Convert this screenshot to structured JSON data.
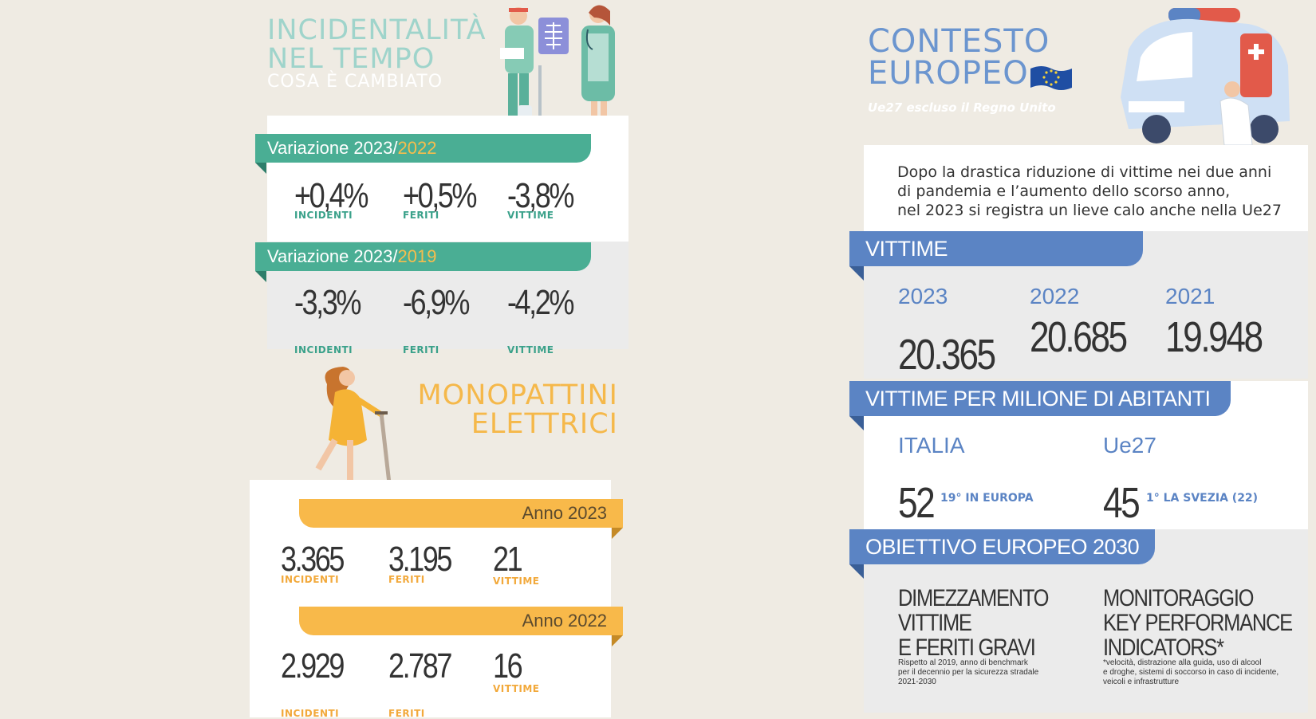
{
  "left": {
    "title_line1": "INCIDENTALITÀ",
    "title_line2": "NEL TEMPO",
    "subtitle": "COSA È CAMBIATO",
    "variation1": {
      "prefix": "Variazione 2023/",
      "year": "2022",
      "values": [
        {
          "value": "+0,4%",
          "label": "INCIDENTI"
        },
        {
          "value": "+0,5%",
          "label": "FERITI"
        },
        {
          "value": "-3,8%",
          "label": "VITTIME"
        }
      ]
    },
    "variation2": {
      "prefix": "Variazione 2023/",
      "year": "2019",
      "values": [
        {
          "value": "-3,3%",
          "label": "INCIDENTI"
        },
        {
          "value": "-6,9%",
          "label": "FERITI"
        },
        {
          "value": "-4,2%",
          "label": "VITTIME"
        }
      ]
    }
  },
  "scooter": {
    "title_line1": "MONOPATTINI",
    "title_line2": "ELETTRICI",
    "year1": {
      "label": "Anno 2023",
      "values": [
        {
          "value": "3.365",
          "label": "INCIDENTI"
        },
        {
          "value": "3.195",
          "label": "FERITI"
        },
        {
          "value": "21",
          "label": "VITTIME"
        }
      ]
    },
    "year2": {
      "label": "Anno 2022",
      "values": [
        {
          "value": "2.929",
          "label": "INCIDENTI"
        },
        {
          "value": "2.787",
          "label": "FERITI"
        },
        {
          "value": "16",
          "label": "VITTIME"
        }
      ]
    }
  },
  "europe": {
    "title_line1": "CONTESTO",
    "title_line2": "EUROPEO",
    "note": "Ue27 escluso il Regno Unito",
    "intro_line1": "Dopo la drastica riduzione di vittime nei due anni",
    "intro_line2": "di pandemia e l’aumento dello scorso anno,",
    "intro_line3": "nel 2023 si registra un lieve calo anche nella Ue27",
    "victims": {
      "header": "VITTIME",
      "years": [
        {
          "year": "2023",
          "value": "20.365"
        },
        {
          "year": "2022",
          "value": "20.685"
        },
        {
          "year": "2021",
          "value": "19.948"
        }
      ]
    },
    "per_million": {
      "header": "VITTIME PER MILIONE DI ABITANTI",
      "italy": {
        "label": "ITALIA",
        "value": "52",
        "note": "19° IN EUROPA"
      },
      "eu": {
        "label": "Ue27",
        "value": "45",
        "note": "1° LA SVEZIA (22)"
      }
    },
    "objective": {
      "header": "OBIETTIVO EUROPEO 2030",
      "col1": {
        "line1": "DIMEZZAMENTO",
        "line2": "VITTIME",
        "line3": "E FERITI GRAVI",
        "note1": "Rispetto al 2019, anno di benchmark",
        "note2": "per il decennio per la sicurezza stradale",
        "note3": "2021-2030"
      },
      "col2": {
        "line1": "MONITORAGGIO",
        "line2": "KEY PERFORMANCE",
        "line3": "INDICATORS*",
        "note1": "*velocità, distrazione alla guida, uso di alcool",
        "note2": "e droghe, sistemi di soccorso in caso di incidente,",
        "note3": "veicoli e infrastrutture"
      }
    }
  },
  "colors": {
    "teal": "#4aae94",
    "orange": "#f8b94a",
    "blue": "#5b84c4",
    "background": "#efebe3"
  }
}
